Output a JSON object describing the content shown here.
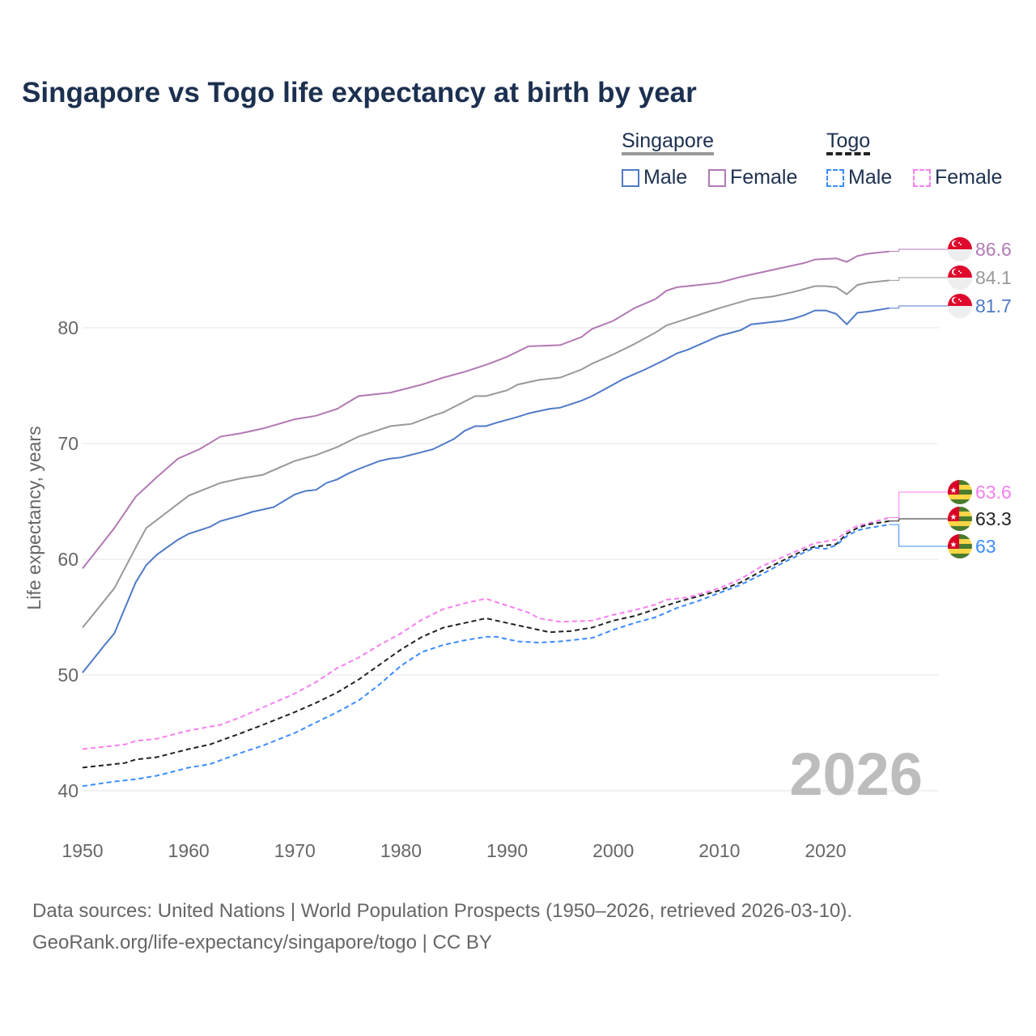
{
  "title": "Singapore vs Togo life expectancy at birth by year",
  "legend": {
    "groups": [
      {
        "name": "Singapore",
        "items": [
          "Male",
          "Female"
        ]
      },
      {
        "name": "Togo",
        "items": [
          "Male",
          "Female"
        ]
      }
    ]
  },
  "year_watermark": "2026",
  "source_lines": [
    "Data sources: United Nations | World Population Prospects (1950–2026, retrieved 2026-03-10).",
    "GeoRank.org/life-expectancy/singapore/togo | CC BY"
  ],
  "chart_data": {
    "type": "line",
    "title": "Singapore vs Togo life expectancy at birth by year",
    "xlabel": "",
    "ylabel": "Life expectancy, years",
    "xlim": [
      1950,
      2026
    ],
    "ylim": [
      38,
      90
    ],
    "xticks": [
      1950,
      1960,
      1970,
      1980,
      1990,
      2000,
      2010,
      2020
    ],
    "yticks": [
      40,
      50,
      60,
      70,
      80
    ],
    "grid": true,
    "legend_position": "top-right",
    "series": [
      {
        "name": "Singapore Female",
        "country": "Singapore",
        "sex": "Female",
        "color": "#b279b4",
        "dashed": false,
        "end_label": "86.6",
        "points": [
          [
            1950,
            59.2
          ],
          [
            1953,
            62.7
          ],
          [
            1955,
            65.4
          ],
          [
            1957,
            67.1
          ],
          [
            1959,
            68.7
          ],
          [
            1961,
            69.5
          ],
          [
            1963,
            70.6
          ],
          [
            1965,
            70.9
          ],
          [
            1967,
            71.3
          ],
          [
            1970,
            72.1
          ],
          [
            1972,
            72.4
          ],
          [
            1974,
            73.0
          ],
          [
            1976,
            74.1
          ],
          [
            1979,
            74.4
          ],
          [
            1982,
            75.1
          ],
          [
            1984,
            75.7
          ],
          [
            1986,
            76.2
          ],
          [
            1988,
            76.8
          ],
          [
            1990,
            77.5
          ],
          [
            1992,
            78.4
          ],
          [
            1995,
            78.5
          ],
          [
            1997,
            79.2
          ],
          [
            1998,
            79.9
          ],
          [
            2000,
            80.6
          ],
          [
            2002,
            81.7
          ],
          [
            2004,
            82.5
          ],
          [
            2005,
            83.2
          ],
          [
            2006,
            83.5
          ],
          [
            2008,
            83.7
          ],
          [
            2010,
            83.9
          ],
          [
            2012,
            84.4
          ],
          [
            2014,
            84.8
          ],
          [
            2016,
            85.2
          ],
          [
            2018,
            85.6
          ],
          [
            2019,
            85.9
          ],
          [
            2021,
            86.0
          ],
          [
            2022,
            85.7
          ],
          [
            2023,
            86.2
          ],
          [
            2024,
            86.4
          ],
          [
            2026,
            86.6
          ]
        ]
      },
      {
        "name": "Singapore",
        "country": "Singapore",
        "sex": "Total",
        "color": "#999999",
        "dashed": false,
        "end_label": "84.1",
        "points": [
          [
            1950,
            54.1
          ],
          [
            1953,
            57.5
          ],
          [
            1955,
            61.0
          ],
          [
            1956,
            62.7
          ],
          [
            1958,
            64.1
          ],
          [
            1960,
            65.5
          ],
          [
            1963,
            66.6
          ],
          [
            1965,
            67.0
          ],
          [
            1967,
            67.3
          ],
          [
            1970,
            68.5
          ],
          [
            1972,
            69.0
          ],
          [
            1974,
            69.7
          ],
          [
            1976,
            70.6
          ],
          [
            1979,
            71.5
          ],
          [
            1981,
            71.7
          ],
          [
            1983,
            72.4
          ],
          [
            1984,
            72.7
          ],
          [
            1987,
            74.1
          ],
          [
            1988,
            74.1
          ],
          [
            1990,
            74.6
          ],
          [
            1991,
            75.1
          ],
          [
            1993,
            75.5
          ],
          [
            1995,
            75.7
          ],
          [
            1997,
            76.4
          ],
          [
            1998,
            76.9
          ],
          [
            2000,
            77.7
          ],
          [
            2002,
            78.6
          ],
          [
            2004,
            79.6
          ],
          [
            2005,
            80.2
          ],
          [
            2007,
            80.8
          ],
          [
            2009,
            81.4
          ],
          [
            2010,
            81.7
          ],
          [
            2013,
            82.5
          ],
          [
            2015,
            82.7
          ],
          [
            2017,
            83.1
          ],
          [
            2019,
            83.6
          ],
          [
            2020,
            83.6
          ],
          [
            2021,
            83.5
          ],
          [
            2022,
            82.9
          ],
          [
            2023,
            83.7
          ],
          [
            2024,
            83.9
          ],
          [
            2026,
            84.1
          ]
        ]
      },
      {
        "name": "Singapore Male",
        "country": "Singapore",
        "sex": "Male",
        "color": "#4f7ac7",
        "dashed": false,
        "end_label": "81.7",
        "points": [
          [
            1950,
            50.2
          ],
          [
            1952,
            52.5
          ],
          [
            1953,
            53.6
          ],
          [
            1955,
            58.0
          ],
          [
            1956,
            59.5
          ],
          [
            1957,
            60.4
          ],
          [
            1959,
            61.7
          ],
          [
            1960,
            62.2
          ],
          [
            1962,
            62.8
          ],
          [
            1963,
            63.3
          ],
          [
            1965,
            63.8
          ],
          [
            1966,
            64.1
          ],
          [
            1968,
            64.5
          ],
          [
            1970,
            65.6
          ],
          [
            1971,
            65.9
          ],
          [
            1972,
            66.0
          ],
          [
            1973,
            66.6
          ],
          [
            1974,
            66.9
          ],
          [
            1975,
            67.4
          ],
          [
            1976,
            67.8
          ],
          [
            1978,
            68.5
          ],
          [
            1979,
            68.7
          ],
          [
            1980,
            68.8
          ],
          [
            1983,
            69.5
          ],
          [
            1985,
            70.4
          ],
          [
            1986,
            71.1
          ],
          [
            1987,
            71.5
          ],
          [
            1988,
            71.5
          ],
          [
            1989,
            71.8
          ],
          [
            1991,
            72.3
          ],
          [
            1992,
            72.6
          ],
          [
            1994,
            73.0
          ],
          [
            1995,
            73.1
          ],
          [
            1997,
            73.7
          ],
          [
            1998,
            74.1
          ],
          [
            2000,
            75.1
          ],
          [
            2001,
            75.6
          ],
          [
            2003,
            76.4
          ],
          [
            2005,
            77.3
          ],
          [
            2006,
            77.8
          ],
          [
            2007,
            78.1
          ],
          [
            2010,
            79.3
          ],
          [
            2012,
            79.8
          ],
          [
            2013,
            80.3
          ],
          [
            2016,
            80.6
          ],
          [
            2017,
            80.8
          ],
          [
            2018,
            81.1
          ],
          [
            2019,
            81.5
          ],
          [
            2020,
            81.5
          ],
          [
            2021,
            81.2
          ],
          [
            2022,
            80.3
          ],
          [
            2023,
            81.3
          ],
          [
            2024,
            81.4
          ],
          [
            2026,
            81.7
          ]
        ]
      },
      {
        "name": "Togo Female",
        "country": "Togo",
        "sex": "Female",
        "color": "#f77ff0",
        "dashed": true,
        "end_label": "63.6",
        "points": [
          [
            1950,
            43.6
          ],
          [
            1952,
            43.8
          ],
          [
            1954,
            44.0
          ],
          [
            1955,
            44.3
          ],
          [
            1957,
            44.5
          ],
          [
            1960,
            45.2
          ],
          [
            1963,
            45.7
          ],
          [
            1965,
            46.4
          ],
          [
            1968,
            47.6
          ],
          [
            1970,
            48.4
          ],
          [
            1972,
            49.4
          ],
          [
            1974,
            50.6
          ],
          [
            1976,
            51.5
          ],
          [
            1978,
            52.6
          ],
          [
            1980,
            53.6
          ],
          [
            1982,
            54.8
          ],
          [
            1984,
            55.7
          ],
          [
            1986,
            56.2
          ],
          [
            1988,
            56.6
          ],
          [
            1989,
            56.3
          ],
          [
            1990,
            56.0
          ],
          [
            1992,
            55.4
          ],
          [
            1993,
            54.9
          ],
          [
            1995,
            54.6
          ],
          [
            1998,
            54.7
          ],
          [
            2000,
            55.2
          ],
          [
            2002,
            55.6
          ],
          [
            2004,
            56.1
          ],
          [
            2005,
            56.5
          ],
          [
            2007,
            56.7
          ],
          [
            2010,
            57.5
          ],
          [
            2012,
            58.3
          ],
          [
            2014,
            59.4
          ],
          [
            2016,
            60.2
          ],
          [
            2018,
            61.0
          ],
          [
            2019,
            61.4
          ],
          [
            2021,
            61.7
          ],
          [
            2022,
            62.4
          ],
          [
            2023,
            62.9
          ],
          [
            2024,
            63.1
          ],
          [
            2026,
            63.6
          ]
        ]
      },
      {
        "name": "Togo",
        "country": "Togo",
        "sex": "Total",
        "color": "#222222",
        "dashed": true,
        "end_label": "63.3",
        "points": [
          [
            1950,
            42.0
          ],
          [
            1952,
            42.2
          ],
          [
            1954,
            42.4
          ],
          [
            1955,
            42.7
          ],
          [
            1957,
            42.9
          ],
          [
            1960,
            43.6
          ],
          [
            1962,
            44.0
          ],
          [
            1965,
            45.0
          ],
          [
            1967,
            45.7
          ],
          [
            1970,
            46.8
          ],
          [
            1972,
            47.6
          ],
          [
            1974,
            48.5
          ],
          [
            1976,
            49.6
          ],
          [
            1978,
            50.9
          ],
          [
            1980,
            52.2
          ],
          [
            1982,
            53.3
          ],
          [
            1984,
            54.1
          ],
          [
            1986,
            54.5
          ],
          [
            1988,
            54.9
          ],
          [
            1990,
            54.5
          ],
          [
            1992,
            54.1
          ],
          [
            1994,
            53.7
          ],
          [
            1996,
            53.8
          ],
          [
            1998,
            54.1
          ],
          [
            2000,
            54.7
          ],
          [
            2002,
            55.1
          ],
          [
            2004,
            55.7
          ],
          [
            2006,
            56.3
          ],
          [
            2008,
            56.8
          ],
          [
            2010,
            57.3
          ],
          [
            2012,
            58.0
          ],
          [
            2014,
            59.0
          ],
          [
            2016,
            59.9
          ],
          [
            2018,
            60.8
          ],
          [
            2019,
            61.1
          ],
          [
            2021,
            61.3
          ],
          [
            2022,
            62.2
          ],
          [
            2023,
            62.7
          ],
          [
            2024,
            63.0
          ],
          [
            2026,
            63.3
          ]
        ]
      },
      {
        "name": "Togo Male",
        "country": "Togo",
        "sex": "Male",
        "color": "#3b8cff",
        "dashed": true,
        "end_label": "63",
        "points": [
          [
            1950,
            40.4
          ],
          [
            1953,
            40.8
          ],
          [
            1955,
            41.0
          ],
          [
            1957,
            41.3
          ],
          [
            1960,
            42.0
          ],
          [
            1962,
            42.3
          ],
          [
            1965,
            43.3
          ],
          [
            1967,
            43.9
          ],
          [
            1970,
            45.0
          ],
          [
            1972,
            45.9
          ],
          [
            1974,
            46.8
          ],
          [
            1976,
            47.8
          ],
          [
            1978,
            49.2
          ],
          [
            1980,
            50.8
          ],
          [
            1982,
            52.0
          ],
          [
            1984,
            52.6
          ],
          [
            1986,
            53.0
          ],
          [
            1988,
            53.3
          ],
          [
            1989,
            53.3
          ],
          [
            1991,
            52.9
          ],
          [
            1993,
            52.8
          ],
          [
            1995,
            52.9
          ],
          [
            1998,
            53.2
          ],
          [
            2000,
            53.9
          ],
          [
            2002,
            54.5
          ],
          [
            2004,
            55.0
          ],
          [
            2006,
            55.8
          ],
          [
            2008,
            56.4
          ],
          [
            2010,
            57.1
          ],
          [
            2012,
            57.8
          ],
          [
            2014,
            58.7
          ],
          [
            2016,
            59.7
          ],
          [
            2018,
            60.6
          ],
          [
            2019,
            61.0
          ],
          [
            2020,
            60.9
          ],
          [
            2021,
            61.2
          ],
          [
            2022,
            62.0
          ],
          [
            2023,
            62.5
          ],
          [
            2024,
            62.7
          ],
          [
            2026,
            63.0
          ]
        ]
      }
    ]
  }
}
